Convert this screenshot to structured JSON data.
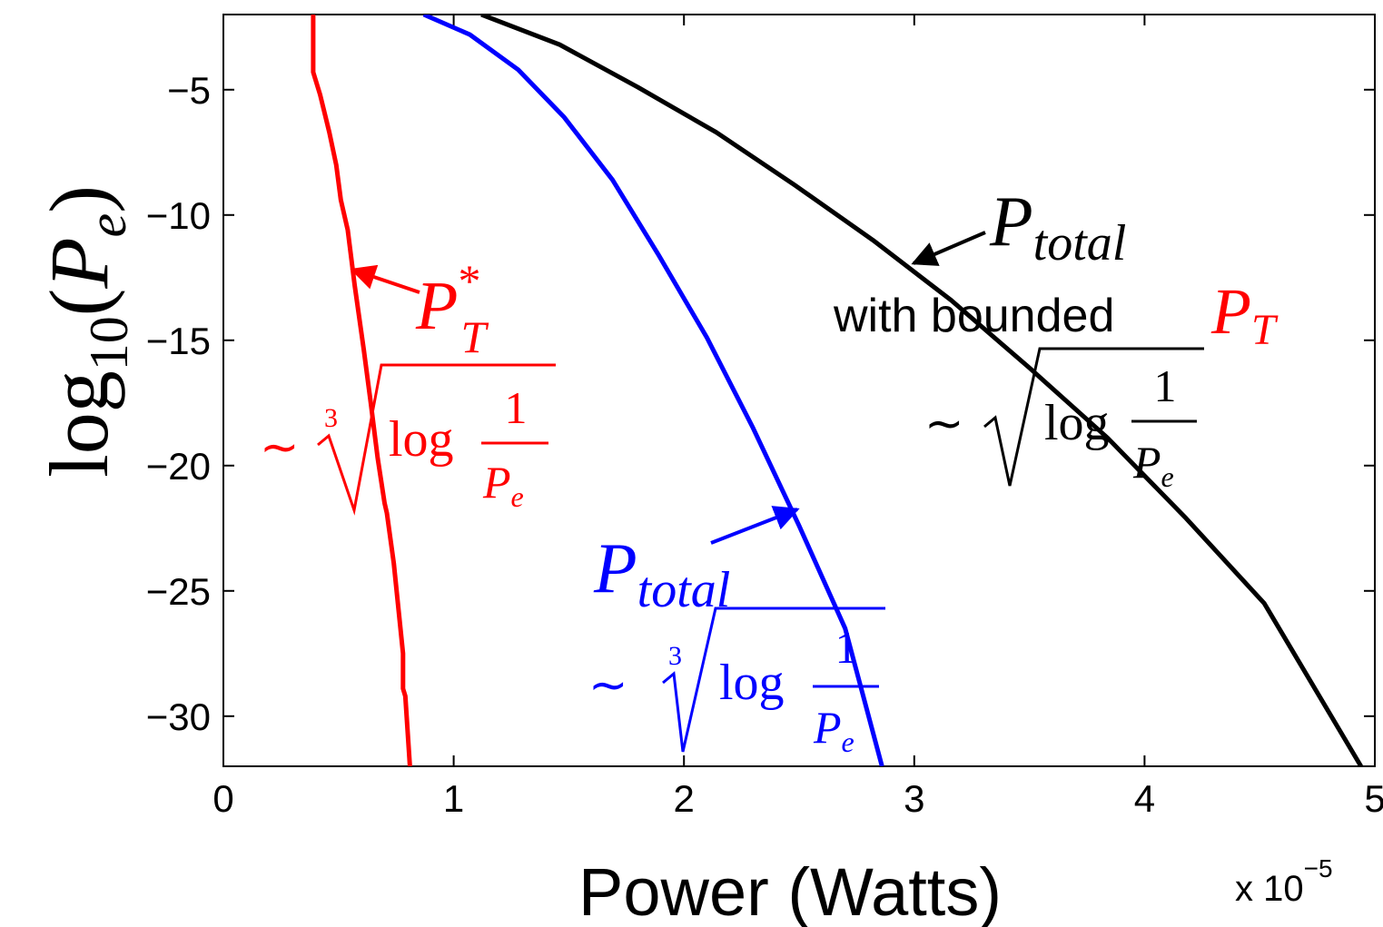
{
  "chart_data": {
    "type": "line",
    "xlabel": "Power (Watts)",
    "x_multiplier": "x 10",
    "x_multiplier_exp": "−5",
    "ylabel": {
      "base": "log",
      "sub": "10",
      "open": "(",
      "var": "P",
      "var_sub": "e",
      "close": ")"
    },
    "xlim": [
      0,
      5
    ],
    "ylim": [
      -32,
      -2
    ],
    "x_ticks": [
      0,
      1,
      2,
      3,
      4,
      5
    ],
    "x_tick_labels": [
      "0",
      "1",
      "2",
      "3",
      "4",
      "5"
    ],
    "y_ticks": [
      -5,
      -10,
      -15,
      -20,
      -25,
      -30
    ],
    "y_tick_labels": [
      "−5",
      "−10",
      "−15",
      "−20",
      "−25",
      "−30"
    ],
    "grid": false,
    "colors": {
      "red": "#ff0000",
      "blue": "#0000ff",
      "black": "#000000"
    },
    "series": [
      {
        "color": "#ff0000",
        "points": [
          [
            0.39,
            -2
          ],
          [
            0.39,
            -4.3
          ],
          [
            0.42,
            -5.2
          ],
          [
            0.46,
            -6.7
          ],
          [
            0.49,
            -8.0
          ],
          [
            0.51,
            -9.4
          ],
          [
            0.54,
            -10.6
          ],
          [
            0.57,
            -12.8
          ],
          [
            0.61,
            -15.4
          ],
          [
            0.64,
            -17.5
          ],
          [
            0.67,
            -19.7
          ],
          [
            0.7,
            -21.5
          ],
          [
            0.71,
            -21.9
          ],
          [
            0.74,
            -23.9
          ],
          [
            0.76,
            -25.7
          ],
          [
            0.78,
            -27.5
          ],
          [
            0.78,
            -28.9
          ],
          [
            0.79,
            -29.2
          ],
          [
            0.81,
            -32
          ]
        ]
      },
      {
        "color": "#0000ff",
        "points": [
          [
            0.87,
            -2
          ],
          [
            1.07,
            -2.8
          ],
          [
            1.28,
            -4.2
          ],
          [
            1.48,
            -6.1
          ],
          [
            1.69,
            -8.6
          ],
          [
            1.89,
            -11.6
          ],
          [
            2.1,
            -14.9
          ],
          [
            2.3,
            -18.5
          ],
          [
            2.5,
            -22.4
          ],
          [
            2.7,
            -26.5
          ],
          [
            2.86,
            -32
          ]
        ]
      },
      {
        "color": "#000000",
        "points": [
          [
            1.12,
            -2
          ],
          [
            1.46,
            -3.2
          ],
          [
            1.8,
            -4.9
          ],
          [
            2.14,
            -6.7
          ],
          [
            2.48,
            -8.8
          ],
          [
            2.82,
            -11.0
          ],
          [
            3.16,
            -13.4
          ],
          [
            3.5,
            -16.1
          ],
          [
            3.84,
            -18.9
          ],
          [
            4.18,
            -22.1
          ],
          [
            4.52,
            -25.5
          ],
          [
            4.94,
            -32
          ]
        ]
      }
    ],
    "annotations": {
      "red_label": {
        "var": "P",
        "sup": "*",
        "sub": "T"
      },
      "red_formula": {
        "tilde": "∼",
        "root_index": "3",
        "func": "log",
        "num": "1",
        "den_var": "P",
        "den_sub": "e"
      },
      "blue_label": {
        "var": "P",
        "sub": "total"
      },
      "blue_formula": {
        "tilde": "∼",
        "root_index": "3",
        "func": "log",
        "num": "1",
        "den_var": "P",
        "den_sub": "e"
      },
      "black_label": {
        "var": "P",
        "sub": "total"
      },
      "black_caption": "with bounded",
      "black_caption_var": {
        "var": "P",
        "sub": "T"
      },
      "black_formula": {
        "tilde": "∼",
        "func": "log",
        "num": "1",
        "den_var": "P",
        "den_sub": "e"
      }
    }
  }
}
